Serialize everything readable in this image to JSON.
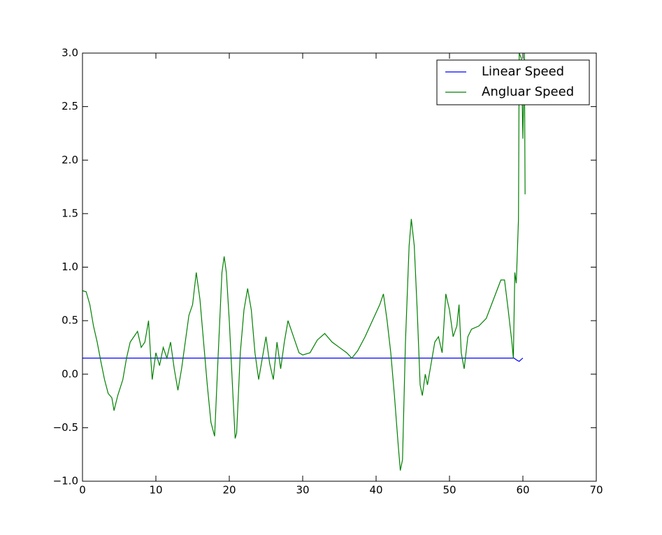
{
  "chart_data": {
    "type": "line",
    "xlim": [
      0,
      70
    ],
    "xticks": [
      0,
      10,
      20,
      30,
      40,
      50,
      60,
      70
    ],
    "ylim": [
      -1,
      3
    ],
    "yticks": [
      {
        "value": -1,
        "label": "−1.0"
      },
      {
        "value": -0.5,
        "label": "−0.5"
      },
      {
        "value": 0,
        "label": "0.0"
      },
      0.5,
      {
        "value": 1,
        "label": "1.0"
      },
      1.5,
      {
        "value": 2,
        "label": "2.0"
      },
      2.5,
      {
        "value": 3,
        "label": "3.0"
      }
    ],
    "legend": "upper right",
    "series": [
      {
        "name": "Linear Speed",
        "color": "#0000ff",
        "x": [
          0,
          58.8,
          59.2,
          59.5,
          59.8,
          60
        ],
        "values": [
          0.15,
          0.15,
          0.13,
          0.12,
          0.14,
          0.15
        ]
      },
      {
        "name": "Angluar Speed",
        "color": "#008000",
        "x": [
          0,
          0.5,
          1,
          1.5,
          2,
          2.5,
          3,
          3.5,
          4,
          4.3,
          4.8,
          5.5,
          6,
          6.5,
          7,
          7.5,
          8,
          8.5,
          9,
          9.3,
          9.5,
          10,
          10.5,
          11,
          11.5,
          12,
          12.5,
          13,
          13.5,
          14,
          14.5,
          15,
          15.5,
          16,
          16.5,
          17,
          17.5,
          18,
          18.5,
          19,
          19.3,
          19.6,
          20,
          20.5,
          20.8,
          21,
          21.5,
          22,
          22.5,
          23,
          23.5,
          24,
          24.5,
          25,
          25.5,
          26,
          26.5,
          27,
          27.5,
          28,
          28.5,
          29,
          29.5,
          30,
          31,
          32,
          33,
          34,
          35,
          36,
          36.7,
          37.5,
          38.5,
          39.5,
          40.5,
          41,
          41.5,
          42,
          42.5,
          43,
          43.3,
          43.6,
          44,
          44.5,
          44.8,
          45.2,
          45.6,
          46,
          46.3,
          46.7,
          47,
          47.5,
          48,
          48.5,
          49,
          49.5,
          50,
          50.5,
          51,
          51.3,
          51.6,
          52,
          52.5,
          53,
          54,
          55,
          56,
          57,
          57.5,
          58,
          58.5,
          58.7,
          58.9,
          59.1,
          59.4,
          59.5,
          59.8,
          60,
          60.2,
          60.3
        ],
        "values": [
          0.78,
          0.77,
          0.65,
          0.45,
          0.3,
          0.12,
          -0.05,
          -0.18,
          -0.22,
          -0.34,
          -0.2,
          -0.05,
          0.15,
          0.3,
          0.35,
          0.4,
          0.25,
          0.3,
          0.5,
          0.15,
          -0.05,
          0.2,
          0.08,
          0.25,
          0.15,
          0.3,
          0.05,
          -0.15,
          0.05,
          0.3,
          0.55,
          0.65,
          0.95,
          0.7,
          0.3,
          -0.1,
          -0.45,
          -0.58,
          0.2,
          0.95,
          1.1,
          0.95,
          0.5,
          -0.2,
          -0.6,
          -0.55,
          0.2,
          0.6,
          0.8,
          0.6,
          0.2,
          -0.05,
          0.15,
          0.35,
          0.1,
          -0.05,
          0.3,
          0.05,
          0.3,
          0.5,
          0.4,
          0.3,
          0.2,
          0.18,
          0.2,
          0.32,
          0.38,
          0.3,
          0.25,
          0.2,
          0.15,
          0.22,
          0.35,
          0.5,
          0.65,
          0.75,
          0.5,
          0.2,
          -0.2,
          -0.65,
          -0.9,
          -0.8,
          0.3,
          1.2,
          1.45,
          1.2,
          0.6,
          -0.1,
          -0.2,
          0,
          -0.1,
          0.1,
          0.3,
          0.35,
          0.2,
          0.75,
          0.6,
          0.35,
          0.45,
          0.65,
          0.2,
          0.05,
          0.35,
          0.42,
          0.45,
          0.52,
          0.7,
          0.88,
          0.88,
          0.6,
          0.3,
          0.15,
          0.95,
          0.85,
          1.45,
          3,
          2.95,
          2.2,
          3,
          1.68
        ]
      }
    ]
  }
}
